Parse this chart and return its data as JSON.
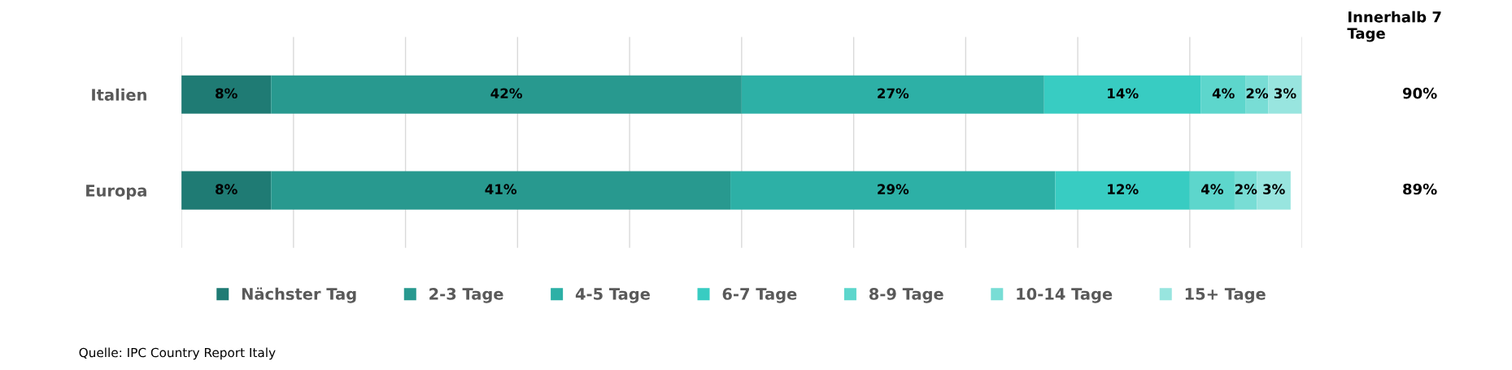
{
  "chart_data": {
    "type": "bar",
    "orientation": "horizontal",
    "stacked": true,
    "categories": [
      "Italien",
      "Europa"
    ],
    "series": [
      {
        "name": "Nächster Tag",
        "color": "#1f7b74",
        "values": [
          8,
          8
        ],
        "value_labels": [
          "8%",
          "8%"
        ]
      },
      {
        "name": "2-3 Tage",
        "color": "#28998f",
        "values": [
          42,
          41
        ],
        "value_labels": [
          "42%",
          "41%"
        ]
      },
      {
        "name": "4-5 Tage",
        "color": "#2db0a6",
        "values": [
          27,
          29
        ],
        "value_labels": [
          "27%",
          "29%"
        ]
      },
      {
        "name": "6-7 Tage",
        "color": "#38ccc2",
        "values": [
          14,
          12
        ],
        "value_labels": [
          "14%",
          "12%"
        ]
      },
      {
        "name": "8-9 Tage",
        "color": "#5dd6cc",
        "values": [
          4,
          4
        ],
        "value_labels": [
          "4%",
          "4%"
        ]
      },
      {
        "name": "10-14 Tage",
        "color": "#78ddd5",
        "values": [
          2,
          2
        ],
        "value_labels": [
          "2%",
          "2%"
        ]
      },
      {
        "name": "15+ Tage",
        "color": "#98e5df",
        "values": [
          3,
          3
        ],
        "value_labels": [
          "3%",
          "3%"
        ]
      }
    ],
    "xlim": [
      0,
      100
    ],
    "xticks": [
      {
        "value": 0,
        "label": null
      },
      {
        "value": 10,
        "label": null
      },
      {
        "value": 20,
        "label": null
      },
      {
        "value": 30,
        "label": null
      },
      {
        "value": 40,
        "label": null
      },
      {
        "value": 50,
        "label": null
      },
      {
        "value": 60,
        "label": null
      },
      {
        "value": 70,
        "label": null
      },
      {
        "value": 80,
        "label": null
      },
      {
        "value": 90,
        "label": null
      },
      {
        "value": 100,
        "label": null
      }
    ],
    "tick_labels": "y",
    "grid": "x",
    "legend": "bottom",
    "annotations": [
      "Quelle: IPC Country Report Italy",
      "Innerhalb 7\nTage",
      "90%",
      "89%"
    ]
  }
}
